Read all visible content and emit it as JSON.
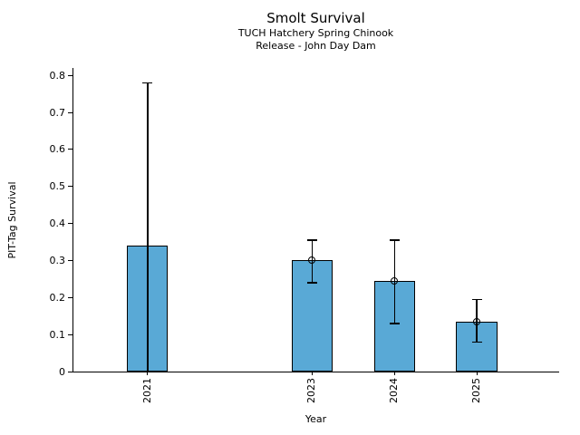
{
  "chart_data": {
    "type": "bar",
    "title": "Smolt Survival",
    "subtitle_lines": [
      "TUCH Hatchery Spring Chinook",
      "Release - John Day Dam"
    ],
    "xlabel": "Year",
    "ylabel": "PIT-Tag Survival",
    "ylim": [
      0,
      0.82
    ],
    "xlim": [
      2020.1,
      2026.0
    ],
    "yticks": [
      {
        "value": 0.0,
        "label": "0"
      },
      {
        "value": 0.1,
        "label": "0.1"
      },
      {
        "value": 0.2,
        "label": "0.2"
      },
      {
        "value": 0.3,
        "label": "0.3"
      },
      {
        "value": 0.4,
        "label": "0.4"
      },
      {
        "value": 0.5,
        "label": "0.5"
      },
      {
        "value": 0.6,
        "label": "0.6"
      },
      {
        "value": 0.7,
        "label": "0.7"
      },
      {
        "value": 0.8,
        "label": "0.8"
      }
    ],
    "categories": [
      "2021",
      "2023",
      "2024",
      "2025"
    ],
    "values": [
      0.34,
      0.3,
      0.245,
      0.135
    ],
    "bars": [
      {
        "label": "2021",
        "x": 2021,
        "value": 0.34,
        "ci_low": 0.0,
        "ci_high": 0.78,
        "marker": false
      },
      {
        "label": "2023",
        "x": 2023,
        "value": 0.3,
        "ci_low": 0.24,
        "ci_high": 0.355,
        "marker": true
      },
      {
        "label": "2024",
        "x": 2024,
        "value": 0.245,
        "ci_low": 0.13,
        "ci_high": 0.355,
        "marker": true
      },
      {
        "label": "2025",
        "x": 2025,
        "value": 0.135,
        "ci_low": 0.08,
        "ci_high": 0.195,
        "marker": true
      }
    ],
    "bar_width_years": 0.5,
    "style": {
      "bar_fill": "#59A9D6",
      "bar_edge": "#000000",
      "error_color": "#000000",
      "axis_color": "#000000",
      "background": "#ffffff",
      "grid": false,
      "legend": false
    }
  }
}
